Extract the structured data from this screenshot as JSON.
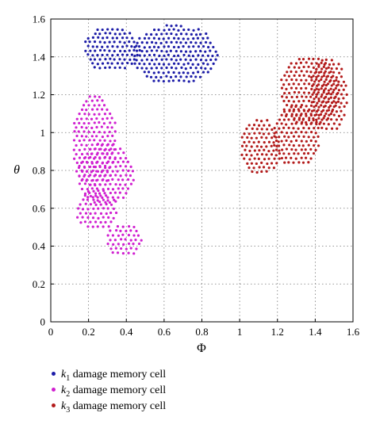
{
  "chart_data": {
    "type": "scatter",
    "title": "",
    "xlabel": "Φ",
    "ylabel": "θ",
    "xlim": [
      0,
      1.6
    ],
    "ylim": [
      0,
      1.6
    ],
    "x_ticks": [
      "0",
      "0.2",
      "0.4",
      "0.6",
      "0.8",
      "1",
      "1.2",
      "1.4",
      "1.6"
    ],
    "y_ticks": [
      "0",
      "0.2",
      "0.4",
      "0.6",
      "0.8",
      "1",
      "1.2",
      "1.4",
      "1.6"
    ],
    "grid": "dotted",
    "legend_position": "bottom-left",
    "series": [
      {
        "name": "k1 damage memory cell",
        "label_var": "k",
        "label_sub": "1",
        "label_text": "damage memory cell",
        "color": "#1c1ca8",
        "clusters": [
          {
            "center": [
              0.32,
              1.44
            ],
            "radius": [
              0.15,
              0.12
            ],
            "spacing": 0.026
          },
          {
            "center": [
              0.66,
              1.41
            ],
            "radius": [
              0.23,
              0.16
            ],
            "spacing": 0.026
          }
        ]
      },
      {
        "name": "k2 damage memory cell",
        "label_var": "k",
        "label_sub": "2",
        "label_text": "damage memory cell",
        "color": "#d01fd0",
        "clusters": [
          {
            "center": [
              0.23,
              0.95
            ],
            "radius": [
              0.12,
              0.25
            ],
            "spacing": 0.027
          },
          {
            "center": [
              0.29,
              0.78
            ],
            "radius": [
              0.15,
              0.17
            ],
            "spacing": 0.027
          },
          {
            "center": [
              0.24,
              0.59
            ],
            "radius": [
              0.11,
              0.11
            ],
            "spacing": 0.027
          },
          {
            "center": [
              0.39,
              0.43
            ],
            "radius": [
              0.1,
              0.09
            ],
            "spacing": 0.027
          }
        ]
      },
      {
        "name": "k3 damage memory cell",
        "label_var": "k",
        "label_sub": "3",
        "label_text": "damage memory cell",
        "color": "#b31b1b",
        "clusters": [
          {
            "center": [
              1.11,
              0.92
            ],
            "radius": [
              0.11,
              0.15
            ],
            "spacing": 0.026
          },
          {
            "center": [
              1.3,
              0.98
            ],
            "radius": [
              0.13,
              0.16
            ],
            "spacing": 0.026
          },
          {
            "center": [
              1.37,
              1.22
            ],
            "radius": [
              0.16,
              0.19
            ],
            "spacing": 0.026
          },
          {
            "center": [
              1.47,
              1.2
            ],
            "radius": [
              0.1,
              0.2
            ],
            "spacing": 0.026
          }
        ]
      }
    ]
  }
}
